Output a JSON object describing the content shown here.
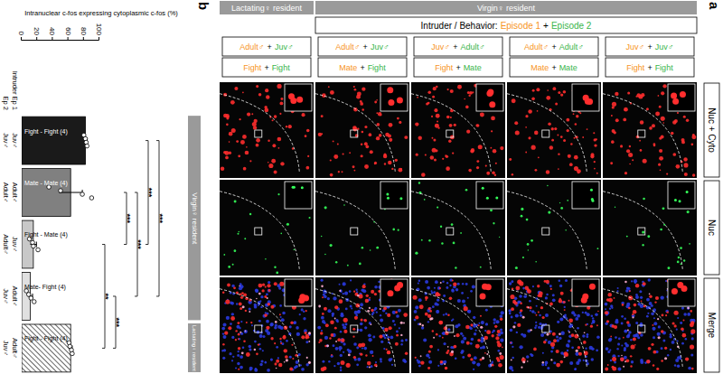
{
  "panel_a": {
    "label": "a",
    "columns": [
      "Nuc + Cyto",
      "Nuc",
      "Merge"
    ],
    "header": {
      "text": "Intruder / Behavior:",
      "episode_1": "Episode 1",
      "joiner": "+",
      "episode_2": "Episode 2"
    },
    "joiner": "+",
    "episode_colors": [
      "#f7941d",
      "#39b54a"
    ],
    "groups": [
      {
        "label": "Virgin♀ resident",
        "rows": [
          {
            "intruder": [
              "Juv♂",
              "Juv♂"
            ],
            "behavior": [
              "Fight",
              "Fight"
            ]
          },
          {
            "intruder": [
              "Adult♂",
              "Adult♂"
            ],
            "behavior": [
              "Mate",
              "Mate"
            ]
          },
          {
            "intruder": [
              "Juv♂",
              "Adult♂"
            ],
            "behavior": [
              "Fight",
              "Mate"
            ]
          },
          {
            "intruder": [
              "Adult♂",
              "Juv♂"
            ],
            "behavior": [
              "Mate",
              "Fight"
            ]
          }
        ]
      },
      {
        "label": "Lactating♀ resident",
        "rows": [
          {
            "intruder": [
              "Adult♂",
              "Juv♂"
            ],
            "behavior": [
              "Fight",
              "Fight"
            ]
          }
        ]
      }
    ]
  },
  "chart_data": {
    "type": "bar",
    "panel_label": "b",
    "y_label": "Intranuclear c-fos expressing cytoplasmic c-fos (%)",
    "categories": [
      "Fight - Fight (4)",
      "Mate - Mate (4)",
      "Fight - Mate (4)",
      "Mate- Fight (4)",
      "Fight - Fight (4)"
    ],
    "category_header": [
      "Intruder Ep 1",
      "Ep 2"
    ],
    "intruder_ep1": [
      "Juv♂",
      "Adult♂",
      "Juv♂",
      "Adult♂",
      "Adult♂"
    ],
    "intruder_ep2": [
      "Juv♂",
      "Adult♂",
      "Adult♂",
      "Juv♂",
      "Juv♂"
    ],
    "values": [
      82,
      63,
      15,
      11,
      63
    ],
    "errors": [
      2,
      15,
      4,
      3,
      2
    ],
    "points": [
      [
        80,
        82,
        83,
        84
      ],
      [
        35,
        50,
        78,
        90
      ],
      [
        10,
        14,
        15,
        21
      ],
      [
        6,
        9,
        12,
        16
      ],
      [
        61,
        62,
        64,
        65
      ]
    ],
    "colors": [
      "#1a1a1a",
      "#808080",
      "#c8c8c8",
      "#e0e0e0",
      "#ffffff"
    ],
    "ylim": [
      0,
      100
    ],
    "yticks": [
      0,
      20,
      40,
      60,
      80,
      100
    ],
    "groups": [
      {
        "label": "Virgin♀ resident",
        "count": 4
      },
      {
        "label": "Lactating♀ resident",
        "count": 1
      }
    ],
    "significance": [
      {
        "from": 2,
        "to": 4,
        "label": "**"
      },
      {
        "from": 3,
        "to": 4,
        "label": "***"
      },
      {
        "from": 1,
        "to": 2,
        "label": "***"
      },
      {
        "from": 1,
        "to": 3,
        "label": "***"
      },
      {
        "from": 0,
        "to": 2,
        "label": "***"
      },
      {
        "from": 0,
        "to": 3,
        "label": "***"
      }
    ]
  }
}
